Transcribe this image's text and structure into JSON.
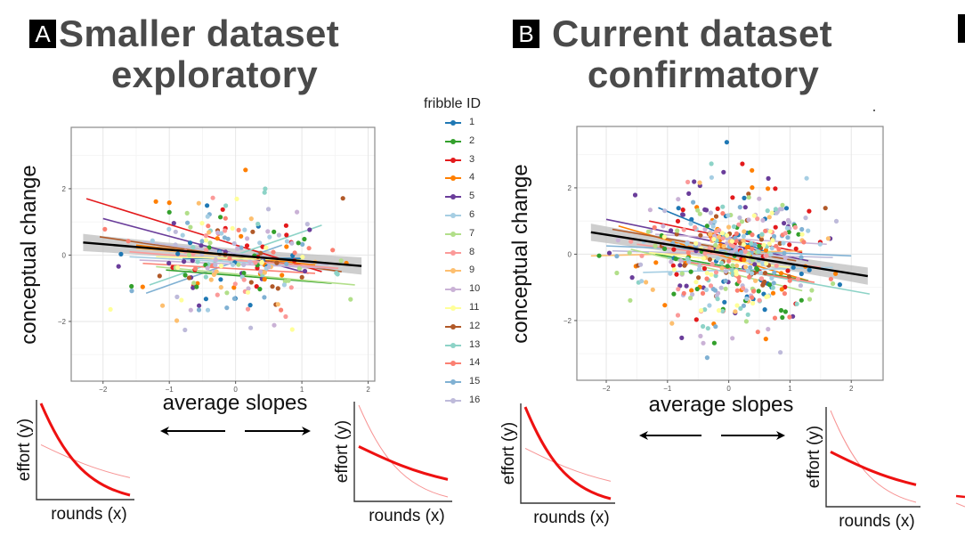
{
  "panels": [
    {
      "letter": "A",
      "title_line1": "Smaller dataset",
      "title_line2": "exploratory"
    },
    {
      "letter": "B",
      "title_line1": "Current dataset",
      "title_line2": "confirmatory"
    }
  ],
  "legend": {
    "title": "fribble ID",
    "items": [
      {
        "label": "1",
        "color": "#1f78b4"
      },
      {
        "label": "2",
        "color": "#33a02c"
      },
      {
        "label": "3",
        "color": "#e31a1c"
      },
      {
        "label": "4",
        "color": "#ff7f00"
      },
      {
        "label": "5",
        "color": "#6a3d9a"
      },
      {
        "label": "6",
        "color": "#a6cee3"
      },
      {
        "label": "7",
        "color": "#b2df8a"
      },
      {
        "label": "8",
        "color": "#fb9a99"
      },
      {
        "label": "9",
        "color": "#fdbf6f"
      },
      {
        "label": "10",
        "color": "#cab2d6"
      },
      {
        "label": "11",
        "color": "#ffff99"
      },
      {
        "label": "12",
        "color": "#b15928"
      },
      {
        "label": "13",
        "color": "#8dd3c7"
      },
      {
        "label": "14",
        "color": "#fb8072"
      },
      {
        "label": "15",
        "color": "#80b1d3"
      },
      {
        "label": "16",
        "color": "#bebada"
      }
    ]
  },
  "illustrations": {
    "ylabel": "effort (y)",
    "xlabel": "rounds (x)",
    "curve_color": "#ee1111",
    "left_arrow": "decreasing average slope",
    "right_arrow": "increasing average slope"
  },
  "chart_data": [
    {
      "type": "scatter",
      "title": "Smaller dataset exploratory",
      "xlabel": "average slopes",
      "ylabel": "conceptual change",
      "xlim": [
        -2.48,
        2.1
      ],
      "ylim": [
        -3.8,
        3.85
      ],
      "xticks": [
        -2,
        -1,
        0,
        1,
        2
      ],
      "yticks": [
        -2,
        0,
        2
      ],
      "grid": true,
      "legend": "right",
      "overall_fit": {
        "x0": -2.3,
        "y0": 0.38,
        "x1": 1.9,
        "y1": -0.33,
        "color": "#000000",
        "ci_halfwidth": 0.2
      },
      "series_fits": [
        {
          "id": "3",
          "x0": -2.25,
          "y0": 1.7,
          "x1": 1.3,
          "y1": -0.5
        },
        {
          "id": "5",
          "x0": -2.0,
          "y0": 1.1,
          "x1": 1.1,
          "y1": -0.55
        },
        {
          "id": "12",
          "x0": -2.05,
          "y0": 0.55,
          "x1": 1.6,
          "y1": -0.5
        },
        {
          "id": "4",
          "x0": -1.5,
          "y0": 0.3,
          "x1": 1.2,
          "y1": -0.3
        },
        {
          "id": "1",
          "x0": -0.8,
          "y0": -0.1,
          "x1": 1.0,
          "y1": -0.1
        },
        {
          "id": "13",
          "x0": -1.3,
          "y0": -0.9,
          "x1": 1.3,
          "y1": 0.9
        },
        {
          "id": "15",
          "x0": -1.35,
          "y0": -1.15,
          "x1": 0.7,
          "y1": 0.3
        },
        {
          "id": "2",
          "x0": -1.05,
          "y0": -0.45,
          "x1": 1.45,
          "y1": -0.85
        },
        {
          "id": "7",
          "x0": -1.2,
          "y0": -0.35,
          "x1": 1.8,
          "y1": -0.9
        },
        {
          "id": "14",
          "x0": -1.4,
          "y0": -0.25,
          "x1": 1.2,
          "y1": -0.55
        },
        {
          "id": "10",
          "x0": -1.45,
          "y0": -0.15,
          "x1": 1.5,
          "y1": -0.4
        },
        {
          "id": "6",
          "x0": -1.6,
          "y0": -0.05,
          "x1": 1.3,
          "y1": -0.35
        },
        {
          "id": "8",
          "x0": -1.6,
          "y0": 0.1,
          "x1": 1.55,
          "y1": -0.4
        },
        {
          "id": "9",
          "x0": -1.5,
          "y0": 0.2,
          "x1": 1.0,
          "y1": -0.2
        },
        {
          "id": "16",
          "x0": -1.4,
          "y0": 0.4,
          "x1": 1.4,
          "y1": -0.3
        },
        {
          "id": "11",
          "x0": -1.2,
          "y0": -0.05,
          "x1": 1.0,
          "y1": -0.15
        }
      ],
      "n_points_per_series": 14,
      "point_spread": {
        "x_mean": 0.0,
        "x_sd": 0.7,
        "y_mean": 0.0,
        "y_sd": 0.95
      },
      "seed": 11
    },
    {
      "type": "scatter",
      "title": "Current dataset confirmatory",
      "xlabel": "average slopes",
      "ylabel": "conceptual change",
      "xlim": [
        -2.48,
        2.52
      ],
      "ylim": [
        -3.8,
        3.85
      ],
      "xticks": [
        -2,
        -1,
        0,
        1,
        2
      ],
      "yticks": [
        -2,
        0,
        2
      ],
      "grid": true,
      "legend": "left (shared)",
      "overall_fit": {
        "x0": -2.25,
        "y0": 0.66,
        "x1": 2.27,
        "y1": -0.66,
        "color": "#000000",
        "ci_halfwidth": 0.2
      },
      "series_fits": [
        {
          "id": "5",
          "x0": -2.0,
          "y0": 1.05,
          "x1": 1.3,
          "y1": -0.2
        },
        {
          "id": "3",
          "x0": -1.3,
          "y0": 1.0,
          "x1": 1.2,
          "y1": 0.05
        },
        {
          "id": "1",
          "x0": -1.15,
          "y0": 1.4,
          "x1": 0.7,
          "y1": 0.0
        },
        {
          "id": "4",
          "x0": -1.8,
          "y0": 0.85,
          "x1": 1.3,
          "y1": -0.8
        },
        {
          "id": "12",
          "x0": -1.9,
          "y0": 0.75,
          "x1": 1.1,
          "y1": -0.2
        },
        {
          "id": "10",
          "x0": -1.2,
          "y0": 0.6,
          "x1": 1.6,
          "y1": 0.3
        },
        {
          "id": "15",
          "x0": -2.0,
          "y0": 0.25,
          "x1": 2.0,
          "y1": -0.05
        },
        {
          "id": "9",
          "x0": -2.25,
          "y0": -0.05,
          "x1": 1.2,
          "y1": 0.1
        },
        {
          "id": "16",
          "x0": -1.9,
          "y0": 0.1,
          "x1": 1.7,
          "y1": -0.1
        },
        {
          "id": "2",
          "x0": -1.2,
          "y0": 0.0,
          "x1": 1.3,
          "y1": -0.8
        },
        {
          "id": "7",
          "x0": -1.6,
          "y0": 0.15,
          "x1": 1.2,
          "y1": -1.1
        },
        {
          "id": "13",
          "x0": -1.0,
          "y0": -0.1,
          "x1": 2.3,
          "y1": -1.2
        },
        {
          "id": "6",
          "x0": -1.4,
          "y0": -0.55,
          "x1": 1.7,
          "y1": -0.4
        },
        {
          "id": "14",
          "x0": -0.8,
          "y0": -0.2,
          "x1": 1.4,
          "y1": -0.85
        },
        {
          "id": "8",
          "x0": -1.5,
          "y0": 0.3,
          "x1": 1.5,
          "y1": -0.4
        },
        {
          "id": "11",
          "x0": -1.3,
          "y0": 0.05,
          "x1": 1.0,
          "y1": -0.4
        }
      ],
      "n_points_per_series": 30,
      "point_spread": {
        "x_mean": 0.0,
        "x_sd": 0.72,
        "y_mean": -0.05,
        "y_sd": 1.05
      },
      "seed": 23
    }
  ]
}
